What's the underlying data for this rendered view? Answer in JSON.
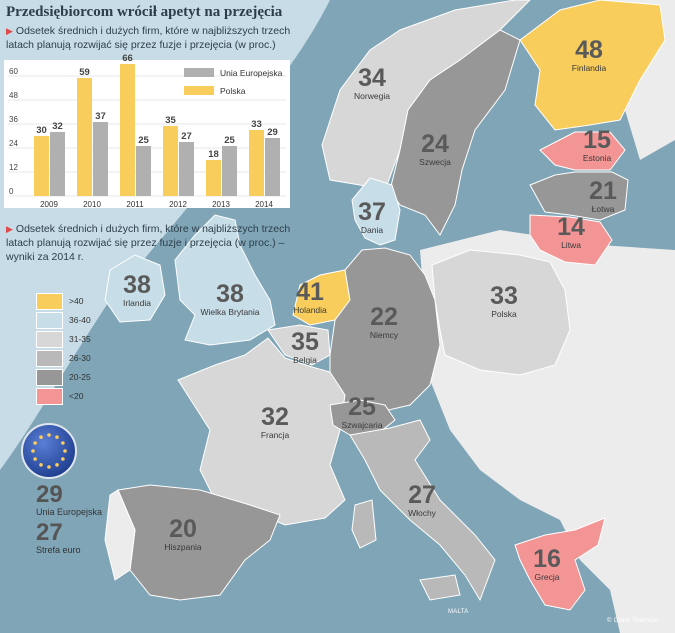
{
  "title": "Przedsiębiorcom wrócił apetyt na przejęcia",
  "subtitle1": "Odsetek średnich i dużych firm, które w najbliższych trzech latach planują rozwijać się przez fuzje i przejęcia (w proc.)",
  "subtitle2": "Odsetek średnich i dużych firm, które w najbliższych trzech latach planują rozwijać się przez fuzje i przejęcia (w proc.) – wyniki za 2014 r.",
  "colors": {
    "yellow": "#f9cd5c",
    "light_blue": "#c7dde7",
    "light_gray": "#d7d7d7",
    "mid_gray": "#b9b9b9",
    "dark_gray": "#979797",
    "pink": "#f29594",
    "sea": "#7fa5b7",
    "sea_light": "#c7dce6"
  },
  "chart_data": {
    "type": "bar",
    "categories": [
      "2009",
      "2010",
      "2011",
      "2012",
      "2013",
      "2014"
    ],
    "series": [
      {
        "name": "Unia Europejska",
        "color": "#b0b0b0",
        "values": [
          32,
          37,
          25,
          27,
          25,
          29
        ]
      },
      {
        "name": "Polska",
        "color": "#f9cd5c",
        "values": [
          30,
          59,
          66,
          35,
          18,
          33
        ]
      }
    ],
    "yticks": [
      "0",
      "12",
      "24",
      "36",
      "48",
      "60"
    ],
    "ylim": [
      0,
      70
    ],
    "legend": "top-right"
  },
  "countries": [
    {
      "name": "Norwegia",
      "value": "34",
      "fill": "light_gray"
    },
    {
      "name": "Szwecja",
      "value": "24",
      "fill": "dark_gray"
    },
    {
      "name": "Finlandia",
      "value": "48",
      "fill": "yellow"
    },
    {
      "name": "Estonia",
      "value": "15",
      "fill": "pink"
    },
    {
      "name": "Łotwa",
      "value": "21",
      "fill": "dark_gray"
    },
    {
      "name": "Litwa",
      "value": "14",
      "fill": "pink"
    },
    {
      "name": "Dania",
      "value": "37",
      "fill": "light_blue"
    },
    {
      "name": "Irlandia",
      "value": "38",
      "fill": "light_blue"
    },
    {
      "name": "Wielka Brytania",
      "value": "38",
      "fill": "light_blue"
    },
    {
      "name": "Holandia",
      "value": "41",
      "fill": "yellow"
    },
    {
      "name": "Belgia",
      "value": "35",
      "fill": "light_gray"
    },
    {
      "name": "Niemcy",
      "value": "22",
      "fill": "dark_gray"
    },
    {
      "name": "Polska",
      "value": "33",
      "fill": "light_gray"
    },
    {
      "name": "Francja",
      "value": "32",
      "fill": "light_gray"
    },
    {
      "name": "Szwajcaria",
      "value": "25",
      "fill": "dark_gray"
    },
    {
      "name": "Włochy",
      "value": "27",
      "fill": "mid_gray"
    },
    {
      "name": "Hiszpania",
      "value": "20",
      "fill": "dark_gray"
    },
    {
      "name": "Grecja",
      "value": "16",
      "fill": "pink"
    }
  ],
  "legend": [
    {
      "label": ">40",
      "fill": "yellow"
    },
    {
      "label": "36-40",
      "fill": "light_blue"
    },
    {
      "label": "31-35",
      "fill": "light_gray"
    },
    {
      "label": "26-30",
      "fill": "mid_gray"
    },
    {
      "label": "20-25",
      "fill": "dark_gray"
    },
    {
      "label": "<20",
      "fill": "pink"
    }
  ],
  "eu": {
    "value": "29",
    "label": "Unia Europejska"
  },
  "eurozone": {
    "value": "27",
    "label": "Strefa euro"
  },
  "malta": "MALTA",
  "source": "Grant Thornton"
}
